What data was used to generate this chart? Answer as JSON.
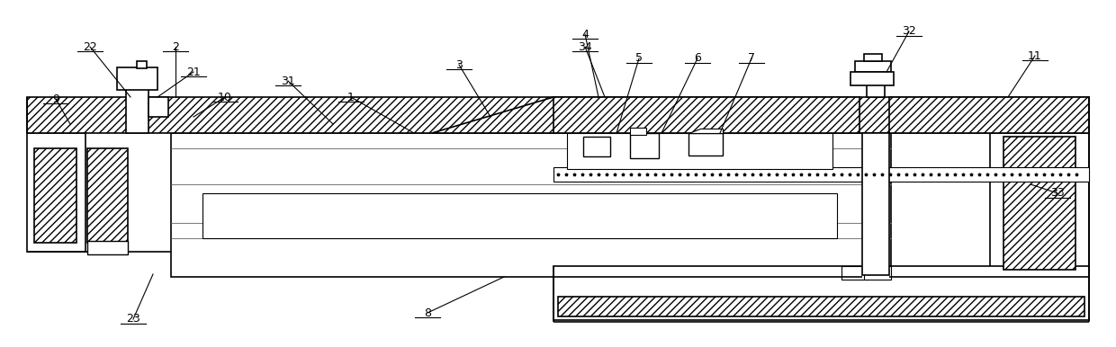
{
  "bg_color": "#ffffff",
  "line_color": "#000000",
  "labels": [
    [
      "1",
      390,
      108,
      460,
      148
    ],
    [
      "2",
      195,
      52,
      195,
      108
    ],
    [
      "3",
      510,
      72,
      545,
      130
    ],
    [
      "4",
      650,
      38,
      665,
      108
    ],
    [
      "5",
      710,
      65,
      685,
      148
    ],
    [
      "6",
      775,
      65,
      735,
      148
    ],
    [
      "7",
      835,
      65,
      800,
      148
    ],
    [
      "8",
      475,
      348,
      560,
      308
    ],
    [
      "9",
      62,
      110,
      78,
      138
    ],
    [
      "10",
      250,
      108,
      215,
      130
    ],
    [
      "11",
      1150,
      62,
      1120,
      108
    ],
    [
      "21",
      215,
      80,
      175,
      108
    ],
    [
      "22",
      100,
      52,
      145,
      108
    ],
    [
      "23",
      148,
      355,
      170,
      305
    ],
    [
      "31",
      320,
      90,
      370,
      138
    ],
    [
      "32",
      1010,
      35,
      985,
      80
    ],
    [
      "33",
      1175,
      215,
      1145,
      205
    ],
    [
      "34",
      650,
      52,
      672,
      108
    ]
  ]
}
